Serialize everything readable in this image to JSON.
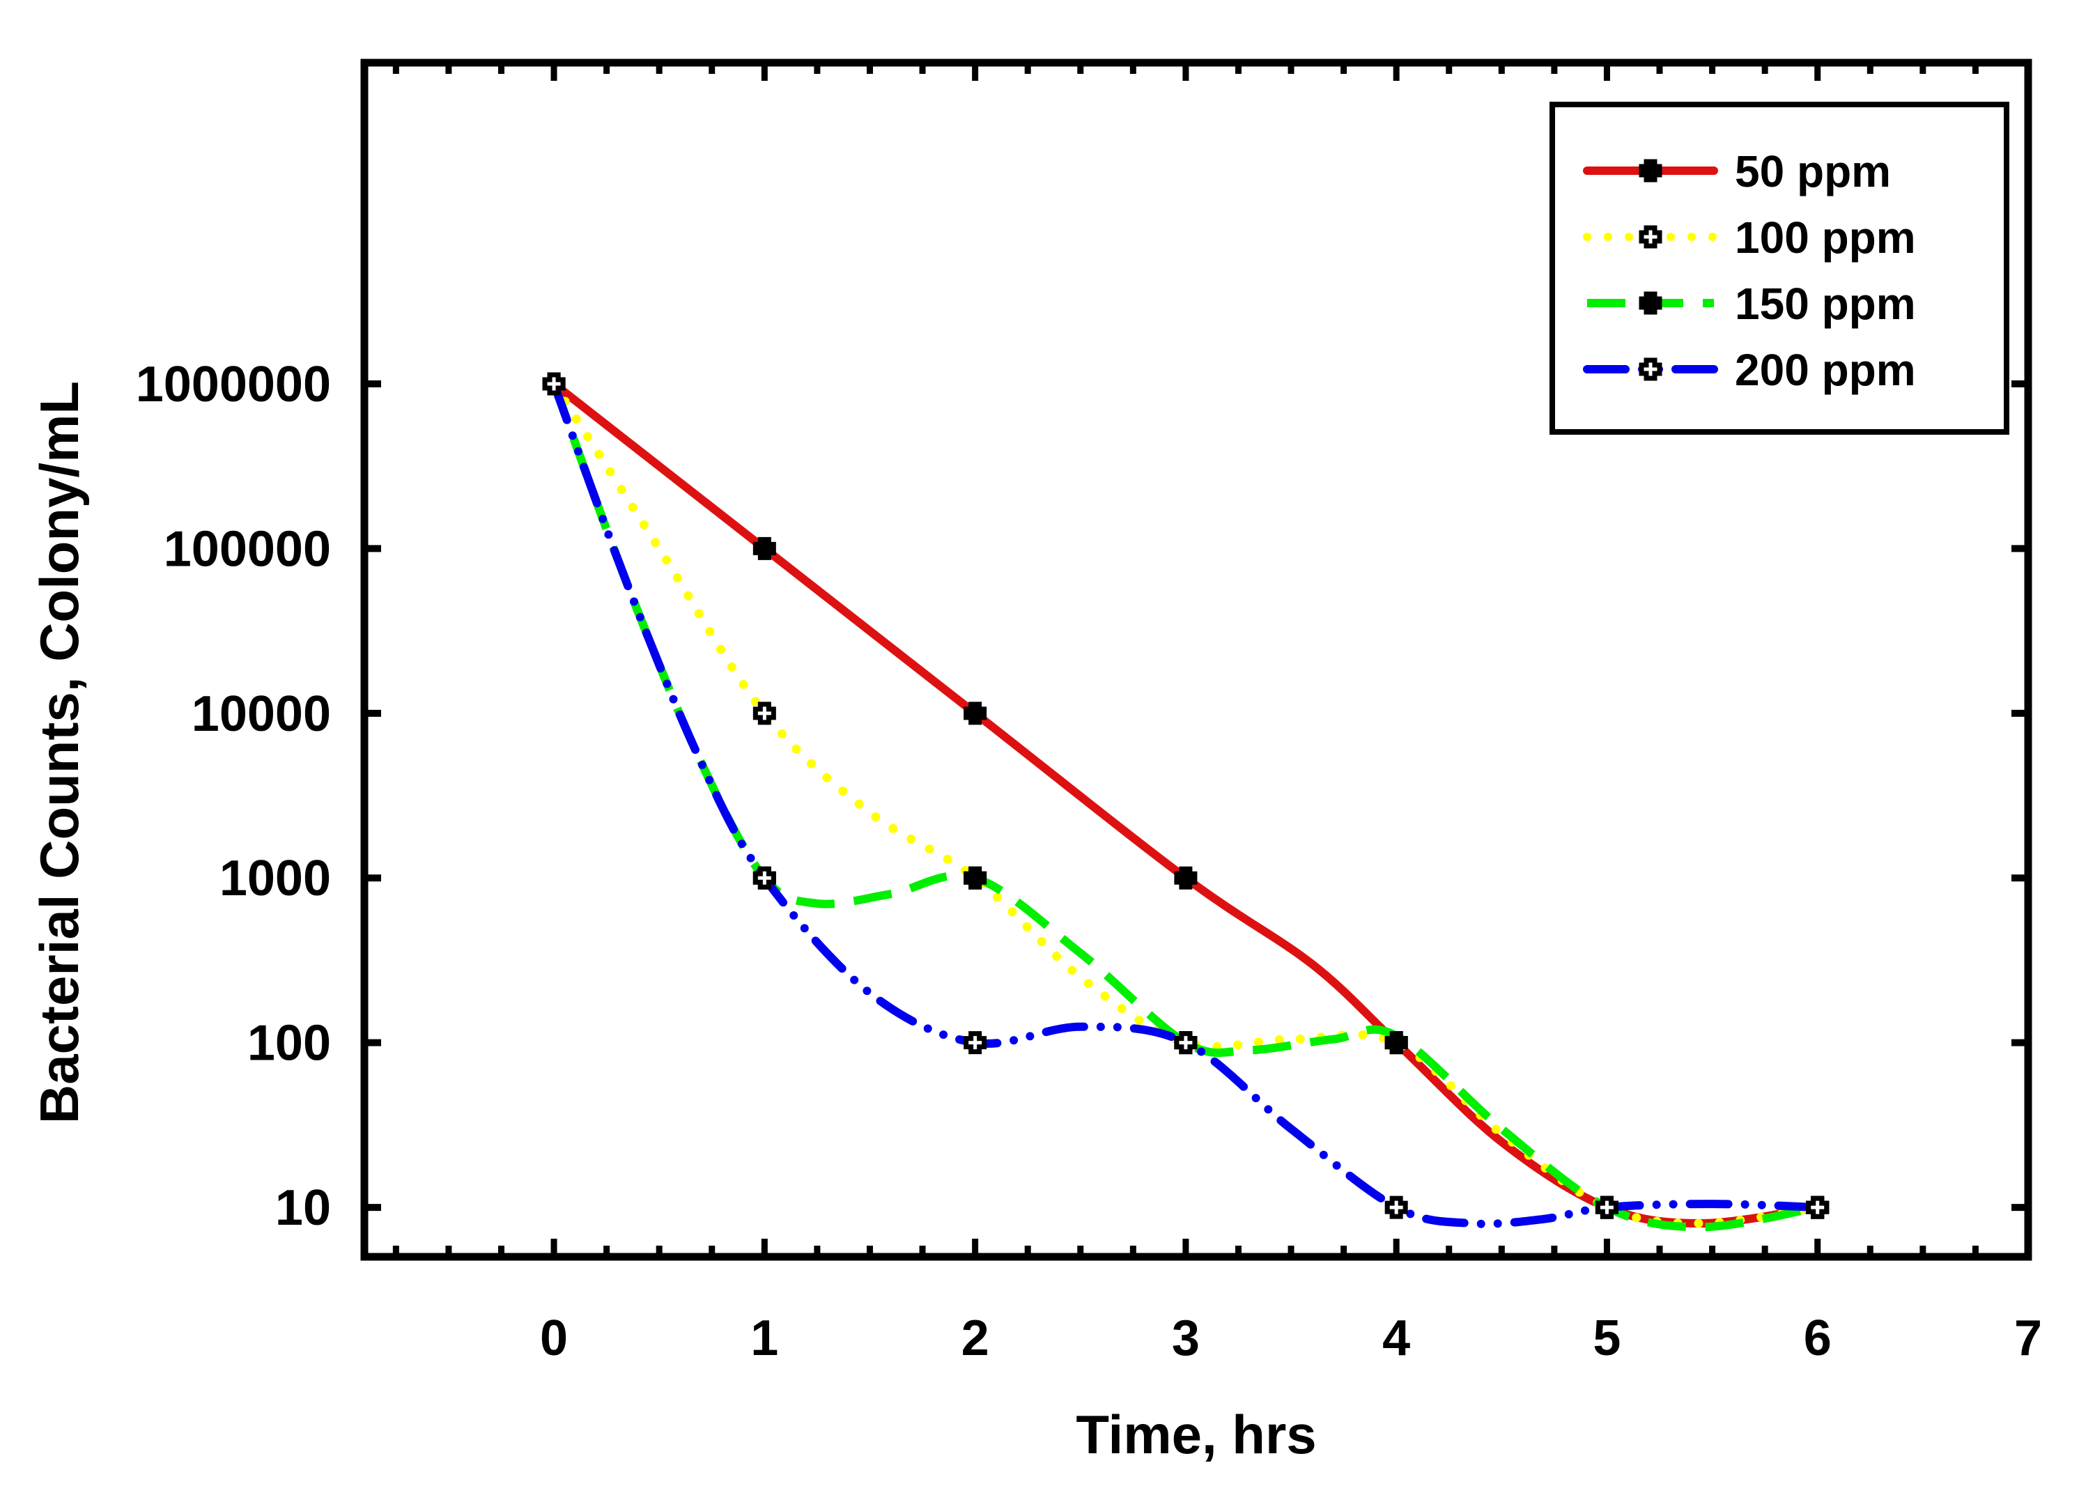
{
  "chart_data": {
    "type": "line",
    "xlabel": "Time, hrs",
    "ylabel": "Bacterial Counts, Colony/mL",
    "xlim": [
      -0.9,
      7
    ],
    "ylim_log10": [
      0.7,
      7.95
    ],
    "x_ticks": [
      0,
      1,
      2,
      3,
      4,
      5,
      6,
      7
    ],
    "x_tick_labels": [
      "0",
      "1",
      "2",
      "3",
      "4",
      "5",
      "6",
      "7"
    ],
    "y_ticks": [
      10,
      100,
      1000,
      10000,
      100000,
      1000000
    ],
    "y_tick_labels": [
      "10",
      "100",
      "1000",
      "10000",
      "100000",
      "1000000"
    ],
    "legend_position": "top-right",
    "series": [
      {
        "name": "50 ppm",
        "color": "#dd1111",
        "dash": "solid",
        "marker": "filled",
        "x": [
          0,
          1,
          2,
          3,
          4,
          5,
          6
        ],
        "values": [
          1000000,
          100000,
          10000,
          1000,
          100,
          10,
          10
        ],
        "curve": [
          [
            0,
            1000000
          ],
          [
            1,
            100000
          ],
          [
            2,
            10000
          ],
          [
            3,
            1000
          ],
          [
            3.6,
            300
          ],
          [
            4,
            100
          ],
          [
            4.5,
            25
          ],
          [
            5,
            10
          ],
          [
            5.45,
            8
          ],
          [
            6,
            10
          ]
        ]
      },
      {
        "name": "100 ppm",
        "color": "#ffff00",
        "dash": "dotted",
        "marker": "open",
        "x": [
          0,
          1,
          2,
          3,
          4,
          5,
          6
        ],
        "values": [
          1000000,
          10000,
          1000,
          100,
          100,
          10,
          10
        ],
        "curve": [
          [
            0,
            1000000
          ],
          [
            0.5,
            100000
          ],
          [
            1,
            10000
          ],
          [
            1.5,
            2500
          ],
          [
            2,
            1000
          ],
          [
            2.5,
            250
          ],
          [
            3,
            100
          ],
          [
            3.5,
            105
          ],
          [
            4,
            100
          ],
          [
            4.5,
            28
          ],
          [
            5,
            10
          ],
          [
            5.45,
            8
          ],
          [
            6,
            10
          ]
        ]
      },
      {
        "name": "150 ppm",
        "color": "#00ee00",
        "dash": "dashed",
        "marker": "filled",
        "x": [
          0,
          1,
          2,
          3,
          4,
          5,
          6
        ],
        "values": [
          1000000,
          1000,
          1000,
          100,
          100,
          10,
          10
        ],
        "curve": [
          [
            0,
            1000000
          ],
          [
            0.35,
            60000
          ],
          [
            0.7,
            5000
          ],
          [
            1,
            1000
          ],
          [
            1.25,
            700
          ],
          [
            1.6,
            800
          ],
          [
            2,
            1000
          ],
          [
            2.5,
            350
          ],
          [
            3,
            100
          ],
          [
            3.3,
            90
          ],
          [
            3.7,
            105
          ],
          [
            4,
            110
          ],
          [
            4.5,
            30
          ],
          [
            5,
            10
          ],
          [
            5.45,
            7.6
          ],
          [
            6,
            10
          ]
        ]
      },
      {
        "name": "200 ppm",
        "color": "#0000ee",
        "dash": "dash-dot-dot",
        "marker": "open",
        "x": [
          0,
          1,
          2,
          3,
          4,
          5,
          6
        ],
        "values": [
          1000000,
          1000,
          100,
          100,
          10,
          10,
          10
        ],
        "curve": [
          [
            0,
            1000000
          ],
          [
            0.35,
            60000
          ],
          [
            0.7,
            5000
          ],
          [
            1,
            1000
          ],
          [
            1.5,
            200
          ],
          [
            2,
            100
          ],
          [
            2.5,
            125
          ],
          [
            3,
            100
          ],
          [
            3.5,
            30
          ],
          [
            4,
            10
          ],
          [
            4.35,
            8
          ],
          [
            4.7,
            8.5
          ],
          [
            5,
            10
          ],
          [
            5.5,
            10.5
          ],
          [
            6,
            10
          ]
        ]
      }
    ]
  }
}
